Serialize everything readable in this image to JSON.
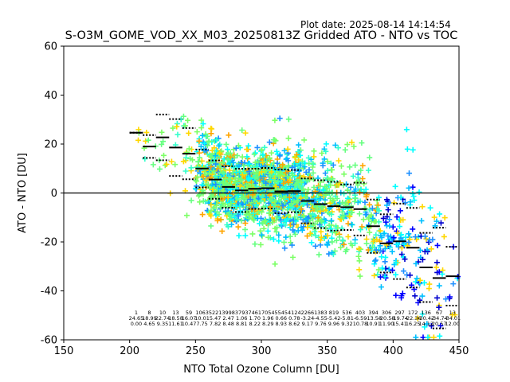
{
  "header": {
    "plot_date": "Plot date: 2025-08-14 14:14:54",
    "title": "S-O3M_GOME_VOD_XX_M03_20250813Z Gridded ATO - NTO vs TOC"
  },
  "chart_data": {
    "type": "scatter",
    "title": "S-O3M_GOME_VOD_XX_M03_20250813Z Gridded ATO - NTO vs TOC",
    "xlabel": "NTO Total Ozone Column [DU]",
    "ylabel": "ATO - NTO [DU]",
    "xlim": [
      150,
      450
    ],
    "ylim": [
      -60,
      60
    ],
    "xticks": [
      150,
      200,
      250,
      300,
      350,
      400,
      450
    ],
    "yticks": [
      -60,
      -40,
      -20,
      0,
      20,
      40,
      60
    ],
    "grid": false,
    "zero_line": 0,
    "marker": "plus",
    "point_colors": [
      "#1e90ff",
      "#00bfff",
      "#00ffff",
      "#33ffcc",
      "#66ff80",
      "#7cff66",
      "#ffd700",
      "#ffa500",
      "#0000ff",
      "#0000cd"
    ],
    "bins": [
      {
        "x": 205,
        "n": "1",
        "mean": "24.65",
        "std": "0.00"
      },
      {
        "x": 215,
        "n": "8",
        "mean": "18.99",
        "std": "4.65"
      },
      {
        "x": 225,
        "n": "10",
        "mean": "22.74",
        "std": "9.35"
      },
      {
        "x": 235,
        "n": "13",
        "mean": "18.58",
        "std": "11.61"
      },
      {
        "x": 245,
        "n": "59",
        "mean": "16.07",
        "std": "10.47"
      },
      {
        "x": 255,
        "n": "1063",
        "mean": "10.01",
        "std": "7.75"
      },
      {
        "x": 265,
        "n": "5221",
        "mean": "5.47",
        "std": "7.82"
      },
      {
        "x": 275,
        "n": "3998",
        "mean": "2.47",
        "std": "8.48"
      },
      {
        "x": 285,
        "n": "3793",
        "mean": "1.06",
        "std": "8.81"
      },
      {
        "x": 295,
        "n": "7461",
        "mean": "1.70",
        "std": "8.22"
      },
      {
        "x": 305,
        "n": "7054",
        "mean": "1.96",
        "std": "8.29"
      },
      {
        "x": 315,
        "n": "5545",
        "mean": "0.66",
        "std": "8.93"
      },
      {
        "x": 325,
        "n": "4124",
        "mean": "0.78",
        "std": "8.62"
      },
      {
        "x": 335,
        "n": "2266",
        "mean": "-3.24",
        "std": "9.17"
      },
      {
        "x": 345,
        "n": "1383",
        "mean": "-4.55",
        "std": "9.76"
      },
      {
        "x": 355,
        "n": "819",
        "mean": "-5.42",
        "std": "9.96"
      },
      {
        "x": 365,
        "n": "536",
        "mean": "-5.81",
        "std": "9.32"
      },
      {
        "x": 375,
        "n": "403",
        "mean": "-6.59",
        "std": "10.78"
      },
      {
        "x": 385,
        "n": "394",
        "mean": "-13.58",
        "std": "10.91"
      },
      {
        "x": 395,
        "n": "306",
        "mean": "-20.58",
        "std": "11.90"
      },
      {
        "x": 405,
        "n": "297",
        "mean": "-19.74",
        "std": "15.41"
      },
      {
        "x": 415,
        "n": "172",
        "mean": "-22.36",
        "std": "16.25"
      },
      {
        "x": 425,
        "n": "136",
        "mean": "-30.42",
        "std": "14.12"
      },
      {
        "x": 435,
        "n": "67",
        "mean": "-34.74",
        "std": "20.57"
      },
      {
        "x": 445,
        "n": "13",
        "mean": "-34.01",
        "std": "12.00"
      }
    ]
  }
}
